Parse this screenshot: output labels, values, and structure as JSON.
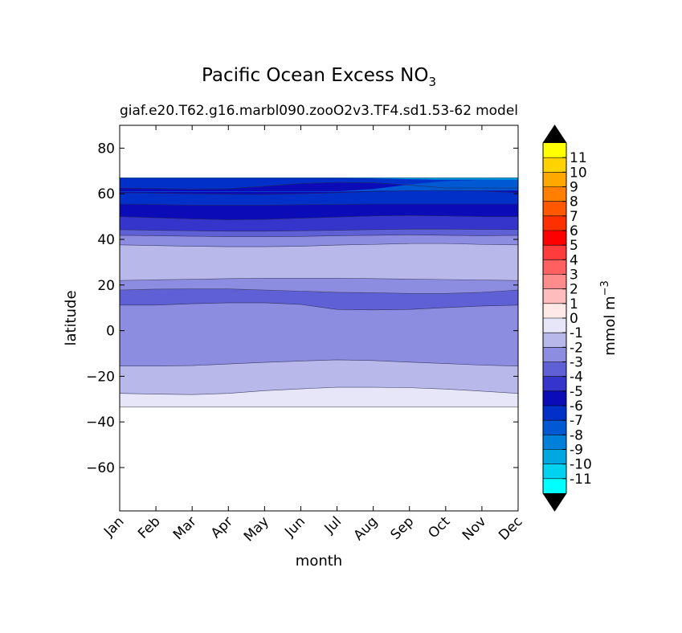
{
  "chart_data": {
    "type": "contour",
    "title": "Pacific Ocean Excess NO",
    "title_subscript": "3",
    "subtitle_left": "giaf.e20.T62.g16.marbl090.zooO2v3.TF4.sd1.53-62",
    "subtitle_right": "model",
    "xlabel": "month",
    "ylabel": "latitude",
    "colorbar_label": "mmol m",
    "colorbar_label_exponent": "−3",
    "x_ticks": [
      "Jan",
      "Feb",
      "Mar",
      "Apr",
      "May",
      "Jun",
      "Jul",
      "Aug",
      "Sep",
      "Oct",
      "Nov",
      "Dec"
    ],
    "y_ticks": [
      "80",
      "60",
      "40",
      "20",
      "0",
      "−20",
      "−40",
      "−60"
    ],
    "y_tick_values": [
      80,
      60,
      40,
      20,
      0,
      -20,
      -40,
      -60
    ],
    "ylim": [
      -79,
      90
    ],
    "data_lat_range": [
      -33.5,
      67
    ],
    "levels": [
      -11.5,
      -10.5,
      -9.5,
      -8.5,
      -7.5,
      -6.5,
      -5.5,
      -4.5,
      -3.5,
      -2.5,
      -1.5,
      -0.5,
      0.5,
      1.5,
      2.5,
      3.5,
      4.5,
      5.5,
      6.5,
      7.5,
      8.5,
      9.5,
      10.5,
      11.5
    ],
    "colorbar_ticks": [
      "11",
      "10",
      "9",
      "8",
      "7",
      "6",
      "5",
      "4",
      "3",
      "2",
      "1",
      "0",
      "-1",
      "-2",
      "-3",
      "-4",
      "-5",
      "-6",
      "-7",
      "-8",
      "-9",
      "-10",
      "-11"
    ],
    "colorbar_colors": [
      "#ffff00",
      "#ffd200",
      "#ffa800",
      "#ff8000",
      "#ff5800",
      "#ff3000",
      "#ff0000",
      "#ff3c3c",
      "#ff6060",
      "#ff8c8c",
      "#ffbcbc",
      "#ffe8e8",
      "#e6e6f8",
      "#b8b8eb",
      "#8c8ce0",
      "#6060d6",
      "#3535cc",
      "#0b0bb8",
      "#0030c8",
      "#0058d2",
      "#0080d8",
      "#00a8e2",
      "#00d2ef",
      "#00ffff"
    ],
    "extend_color": "#000000",
    "bands": [
      {
        "value": -0.5,
        "lower": [
          -33.5,
          -33.5,
          -33.5,
          -33.5,
          -33.5,
          -33.5,
          -33.5,
          -33.5,
          -33.5,
          -33.5,
          -33.5,
          -33.5
        ],
        "upper": [
          -27.5,
          -27.8,
          -28,
          -27.5,
          -26.3,
          -25.5,
          -24.8,
          -24.8,
          -25,
          -25.6,
          -26.5,
          -27.5
        ]
      },
      {
        "value": -1.5,
        "lower": [
          -27.5,
          -27.8,
          -28,
          -27.5,
          -26.3,
          -25.5,
          -24.8,
          -24.8,
          -25,
          -25.6,
          -26.5,
          -27.5
        ],
        "upper": [
          -15.5,
          -15.5,
          -15.3,
          -14.6,
          -13.9,
          -13.3,
          -12.8,
          -13.1,
          -13.8,
          -14.4,
          -15.1,
          -15.5
        ]
      },
      {
        "value": -2.5,
        "lower": [
          -15.5,
          -15.5,
          -15.3,
          -14.6,
          -13.9,
          -13.3,
          -12.8,
          -13.1,
          -13.8,
          -14.4,
          -15.1,
          -15.5
        ],
        "upper": [
          11.2,
          11.2,
          11.8,
          12.2,
          12.2,
          11.5,
          9.3,
          9.1,
          9.3,
          10.1,
          10.8,
          11.2
        ]
      },
      {
        "value": -3.5,
        "lower": [
          11.2,
          11.2,
          11.8,
          12.2,
          12.2,
          11.5,
          9.3,
          9.1,
          9.3,
          10.1,
          10.8,
          11.2
        ],
        "upper": [
          17.8,
          18.2,
          18.3,
          18.3,
          17.8,
          17.3,
          16.8,
          16.6,
          16.3,
          16.3,
          16.8,
          17.8
        ]
      },
      {
        "value": -2.5,
        "lower": [
          17.8,
          18.2,
          18.3,
          18.3,
          17.8,
          17.3,
          16.8,
          16.6,
          16.3,
          16.3,
          16.8,
          17.8
        ],
        "upper": [
          22,
          22.3,
          22.5,
          22.8,
          23,
          23,
          23,
          22.8,
          22.6,
          22.4,
          22.2,
          22
        ]
      },
      {
        "value": -1.5,
        "lower": [
          22,
          22.3,
          22.5,
          22.8,
          23,
          23,
          23,
          22.8,
          22.6,
          22.4,
          22.2,
          22
        ],
        "upper": [
          37.6,
          37.3,
          37,
          36.8,
          36.8,
          37,
          37.5,
          37.8,
          38.2,
          38.2,
          37.8,
          37.6
        ]
      },
      {
        "value": -2.5,
        "lower": [
          37.6,
          37.3,
          37,
          36.8,
          36.8,
          37,
          37.5,
          37.8,
          38.2,
          38.2,
          37.8,
          37.6
        ],
        "upper": [
          41.8,
          41.6,
          41.4,
          41.2,
          41.2,
          41.3,
          41.6,
          41.8,
          42,
          41.8,
          41.6,
          41.8
        ]
      },
      {
        "value": -3.5,
        "lower": [
          41.8,
          41.6,
          41.4,
          41.2,
          41.2,
          41.3,
          41.6,
          41.8,
          42,
          41.8,
          41.6,
          41.8
        ],
        "upper": [
          44.3,
          44,
          43.8,
          43.6,
          43.6,
          43.8,
          44,
          44.3,
          44.5,
          44.5,
          44.4,
          44.3
        ]
      },
      {
        "value": -4.5,
        "lower": [
          44.3,
          44,
          43.8,
          43.6,
          43.6,
          43.8,
          44,
          44.3,
          44.5,
          44.5,
          44.4,
          44.3
        ],
        "upper": [
          50,
          49.5,
          49,
          48.6,
          48.8,
          49.3,
          49.8,
          50.3,
          50.5,
          50.3,
          50,
          50
        ]
      },
      {
        "value": -5.5,
        "lower": [
          50,
          49.5,
          49,
          48.6,
          48.8,
          49.3,
          49.8,
          50.3,
          50.5,
          50.3,
          50,
          50
        ],
        "upper": [
          55.5,
          55.3,
          55,
          55,
          55,
          55.2,
          55.3,
          55.5,
          55.5,
          55.5,
          55.5,
          55.5
        ]
      },
      {
        "value": -6.5,
        "lower": [
          55.5,
          55.3,
          55,
          55,
          55,
          55.2,
          55.3,
          55.5,
          55.5,
          55.5,
          55.5,
          55.5
        ],
        "upper": [
          60.5,
          60.3,
          60,
          59.8,
          59.7,
          60,
          60.5,
          61,
          61.3,
          61.5,
          61.2,
          60.5
        ]
      },
      {
        "value": -5.5,
        "lower": [
          60.5,
          60.3,
          60,
          59.8,
          59.7,
          60,
          60.5,
          61,
          61.3,
          61.5,
          61.2,
          60.5
        ],
        "upper": [
          62.5,
          62.3,
          62,
          62.2,
          63.3,
          64.5,
          65,
          64.8,
          63.8,
          62.5,
          62.5,
          62.5
        ]
      },
      {
        "value": -6.5,
        "lower": [
          62.5,
          62.3,
          62,
          62.2,
          63.3,
          64.5,
          65,
          64.8,
          63.8,
          62.5,
          62.5,
          62.5
        ],
        "upper": [
          67,
          67,
          67,
          67,
          67,
          67,
          67,
          67,
          67,
          67,
          67,
          67
        ]
      }
    ],
    "overlays": [
      {
        "value": -7.5,
        "lower": [
          61,
          61,
          61,
          61,
          61,
          61,
          61,
          61.3,
          61.5,
          61.5,
          61.5,
          61.5
        ],
        "upper": [
          61,
          61,
          61,
          61,
          61,
          61,
          61,
          62,
          64,
          65.5,
          66,
          66.2
        ]
      },
      {
        "value": -9.5,
        "lower": [
          67,
          67,
          67,
          67,
          67,
          67,
          67,
          66.8,
          66.5,
          66.3,
          66.3,
          66.3
        ],
        "upper": [
          67,
          67,
          67,
          67,
          67,
          67,
          67,
          67,
          67,
          67,
          67,
          67
        ]
      }
    ]
  }
}
